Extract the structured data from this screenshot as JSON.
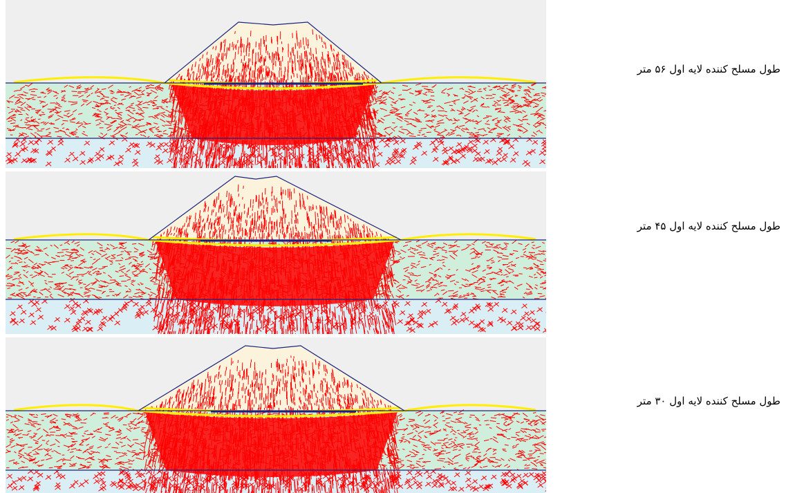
{
  "panels": [
    {
      "caption": "طول مسلح کننده لایه اول ۵۶ متر"
    },
    {
      "caption": "طول مسلح کننده لایه اول ۴۵ متر"
    },
    {
      "caption": "طول مسلح کننده لایه اول ۳۰ متر"
    }
  ]
}
